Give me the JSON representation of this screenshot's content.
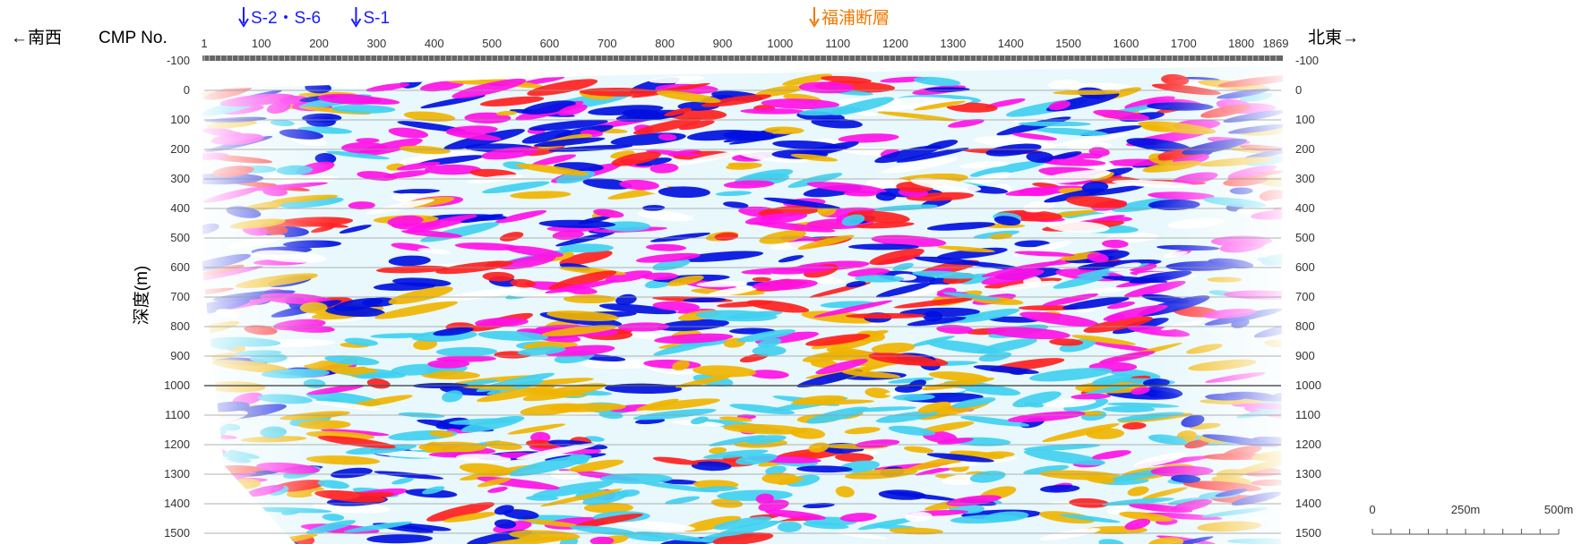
{
  "chart_data": {
    "type": "heatmap",
    "title": "",
    "direction_left": "←南西",
    "direction_right": "北東→",
    "xlabel": "CMP No.",
    "ylabel": "深度(m)",
    "x_ticks": [
      "1",
      "100",
      "200",
      "300",
      "400",
      "500",
      "600",
      "700",
      "800",
      "900",
      "1000",
      "1100",
      "1200",
      "1300",
      "1400",
      "1500",
      "1600",
      "1700",
      "1800",
      "1869"
    ],
    "x_tick_values": [
      1,
      100,
      200,
      300,
      400,
      500,
      600,
      700,
      800,
      900,
      1000,
      1100,
      1200,
      1300,
      1400,
      1500,
      1600,
      1700,
      1800,
      1869
    ],
    "y_ticks": [
      "-100",
      "0",
      "100",
      "200",
      "300",
      "400",
      "500",
      "600",
      "700",
      "800",
      "900",
      "1000",
      "1100",
      "1200",
      "1300",
      "1400",
      "1500"
    ],
    "y_tick_values": [
      -100,
      0,
      100,
      200,
      300,
      400,
      500,
      600,
      700,
      800,
      900,
      1000,
      1100,
      1200,
      1300,
      1400,
      1500
    ],
    "xlim": [
      1,
      1869
    ],
    "ylim": [
      -100,
      1500
    ],
    "annotations": [
      {
        "label": "S-2・S-6",
        "cmp": 60,
        "color": "#1a1aff"
      },
      {
        "label": "S-1",
        "cmp": 255,
        "color": "#1a1aff"
      },
      {
        "label": "福浦断層",
        "cmp": 1050,
        "color": "#f07800"
      }
    ],
    "scale_bar": {
      "labels": [
        "0",
        "250m",
        "500m"
      ],
      "lengths_m": [
        0,
        250,
        500
      ]
    },
    "colors": {
      "positive": "#ff10e6",
      "negative": "#0010e0",
      "mid_positive": "#f0b400",
      "mid_negative": "#40d0f0",
      "background": "#ffffff"
    }
  }
}
